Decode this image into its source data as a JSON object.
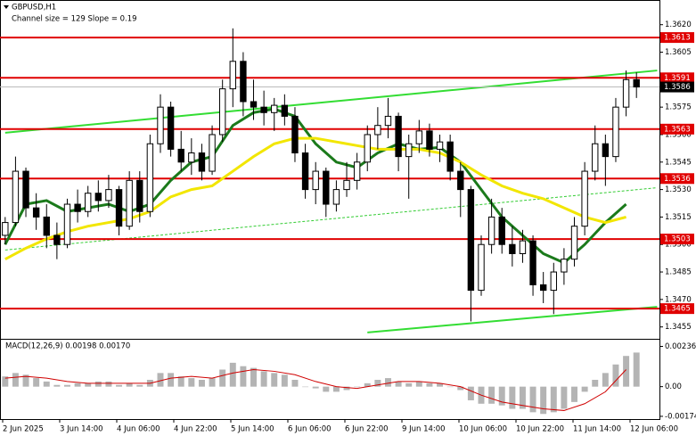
{
  "chart_data": {
    "type": "candlestick",
    "title": "GBPUSD,H1",
    "subtitle": "Channel size = 129 Slope = 0.19",
    "x_labels": [
      "2 Jun 2025",
      "3 Jun 14:00",
      "4 Jun 06:00",
      "4 Jun 22:00",
      "5 Jun 14:00",
      "6 Jun 06:00",
      "6 Jun 22:00",
      "9 Jun 14:00",
      "10 Jun 06:00",
      "10 Jun 22:00",
      "11 Jun 14:00",
      "12 Jun 06:00"
    ],
    "candles": [
      [
        1.3505,
        1.3515,
        1.35,
        1.3512
      ],
      [
        1.3512,
        1.3548,
        1.351,
        1.354
      ],
      [
        1.354,
        1.3542,
        1.3515,
        1.352
      ],
      [
        1.352,
        1.3528,
        1.3508,
        1.3515
      ],
      [
        1.3515,
        1.3522,
        1.3498,
        1.3505
      ],
      [
        1.3505,
        1.3512,
        1.3492,
        1.35
      ],
      [
        1.35,
        1.3525,
        1.3498,
        1.3522
      ],
      [
        1.3522,
        1.353,
        1.3512,
        1.3518
      ],
      [
        1.3518,
        1.3532,
        1.3515,
        1.3528
      ],
      [
        1.3528,
        1.3535,
        1.3518,
        1.3524
      ],
      [
        1.3524,
        1.3538,
        1.352,
        1.353
      ],
      [
        1.353,
        1.3532,
        1.3505,
        1.351
      ],
      [
        1.351,
        1.354,
        1.3508,
        1.3535
      ],
      [
        1.3535,
        1.354,
        1.3512,
        1.3518
      ],
      [
        1.3518,
        1.356,
        1.3515,
        1.3555
      ],
      [
        1.3555,
        1.3582,
        1.355,
        1.3575
      ],
      [
        1.3575,
        1.3578,
        1.3548,
        1.3552
      ],
      [
        1.3552,
        1.3562,
        1.354,
        1.3545
      ],
      [
        1.3545,
        1.3558,
        1.3538,
        1.355
      ],
      [
        1.355,
        1.3555,
        1.3535,
        1.354
      ],
      [
        1.354,
        1.3565,
        1.3538,
        1.356
      ],
      [
        1.356,
        1.359,
        1.3556,
        1.3585
      ],
      [
        1.3585,
        1.3618,
        1.3575,
        1.36
      ],
      [
        1.36,
        1.3605,
        1.357,
        1.3578
      ],
      [
        1.3578,
        1.359,
        1.3568,
        1.3575
      ],
      [
        1.3575,
        1.3584,
        1.3565,
        1.3572
      ],
      [
        1.3572,
        1.358,
        1.3562,
        1.3576
      ],
      [
        1.3576,
        1.3582,
        1.3565,
        1.357
      ],
      [
        1.357,
        1.3575,
        1.3545,
        1.355
      ],
      [
        1.355,
        1.3555,
        1.3525,
        1.353
      ],
      [
        1.353,
        1.3545,
        1.3522,
        1.354
      ],
      [
        1.354,
        1.3542,
        1.3515,
        1.3522
      ],
      [
        1.3522,
        1.3535,
        1.3518,
        1.353
      ],
      [
        1.353,
        1.3545,
        1.3526,
        1.3535
      ],
      [
        1.3535,
        1.355,
        1.353,
        1.3545
      ],
      [
        1.3545,
        1.3565,
        1.354,
        1.356
      ],
      [
        1.356,
        1.3575,
        1.3552,
        1.3565
      ],
      [
        1.3565,
        1.358,
        1.3558,
        1.357
      ],
      [
        1.357,
        1.3572,
        1.354,
        1.3548
      ],
      [
        1.3548,
        1.356,
        1.3525,
        1.3555
      ],
      [
        1.3555,
        1.3568,
        1.355,
        1.3562
      ],
      [
        1.3562,
        1.3566,
        1.3548,
        1.3552
      ],
      [
        1.3552,
        1.356,
        1.3545,
        1.3556
      ],
      [
        1.3556,
        1.356,
        1.3535,
        1.354
      ],
      [
        1.354,
        1.3545,
        1.3515,
        1.353
      ],
      [
        1.353,
        1.3532,
        1.3458,
        1.3475
      ],
      [
        1.3475,
        1.3505,
        1.3472,
        1.35
      ],
      [
        1.35,
        1.3525,
        1.3495,
        1.3515
      ],
      [
        1.3515,
        1.352,
        1.3495,
        1.35
      ],
      [
        1.35,
        1.351,
        1.3488,
        1.3495
      ],
      [
        1.3495,
        1.3508,
        1.349,
        1.3502
      ],
      [
        1.3502,
        1.3505,
        1.3472,
        1.3478
      ],
      [
        1.3478,
        1.3485,
        1.3468,
        1.3475
      ],
      [
        1.3475,
        1.349,
        1.3462,
        1.3485
      ],
      [
        1.3485,
        1.3498,
        1.3478,
        1.3492
      ],
      [
        1.3492,
        1.3515,
        1.3488,
        1.351
      ],
      [
        1.351,
        1.3545,
        1.3505,
        1.354
      ],
      [
        1.354,
        1.3565,
        1.3535,
        1.3555
      ],
      [
        1.3555,
        1.356,
        1.3532,
        1.3548
      ],
      [
        1.3548,
        1.358,
        1.3545,
        1.3575
      ],
      [
        1.3575,
        1.3595,
        1.357,
        1.359
      ],
      [
        1.359,
        1.3594,
        1.358,
        1.3586
      ]
    ],
    "moving_averages": [
      {
        "color": "#1b7a1b",
        "x": [
          0,
          2,
          4,
          6,
          8,
          10,
          12,
          14,
          16,
          18,
          20,
          22,
          24,
          26,
          28,
          30,
          32,
          34,
          36,
          38,
          40,
          42,
          44,
          46,
          48,
          50,
          52,
          54,
          56,
          58,
          60
        ],
        "values": [
          1.35,
          1.3522,
          1.3524,
          1.3518,
          1.352,
          1.3522,
          1.3518,
          1.3522,
          1.3535,
          1.3545,
          1.3548,
          1.3565,
          1.3572,
          1.3574,
          1.357,
          1.3555,
          1.3545,
          1.3542,
          1.355,
          1.3555,
          1.3552,
          1.3553,
          1.3545,
          1.353,
          1.3515,
          1.3505,
          1.3495,
          1.349,
          1.35,
          1.3512,
          1.3522
        ]
      },
      {
        "color": "#f2e600",
        "x": [
          0,
          2,
          4,
          6,
          8,
          10,
          12,
          14,
          16,
          18,
          20,
          22,
          24,
          26,
          28,
          30,
          32,
          34,
          36,
          38,
          40,
          42,
          44,
          46,
          48,
          50,
          52,
          54,
          56,
          58,
          60
        ],
        "values": [
          1.3492,
          1.3498,
          1.3503,
          1.3507,
          1.351,
          1.3512,
          1.3514,
          1.3518,
          1.3526,
          1.353,
          1.3532,
          1.354,
          1.3548,
          1.3555,
          1.3558,
          1.3558,
          1.3556,
          1.3554,
          1.3552,
          1.3552,
          1.3552,
          1.355,
          1.3545,
          1.3538,
          1.3532,
          1.3528,
          1.3525,
          1.352,
          1.3515,
          1.3512,
          1.3515
        ]
      }
    ],
    "trendlines": [
      {
        "color": "#33dd33",
        "x": [
          0,
          63
        ],
        "values": [
          1.3561,
          1.3595
        ]
      },
      {
        "color": "#33dd33",
        "x": [
          35,
          63
        ],
        "values": [
          1.3452,
          1.3466
        ]
      },
      {
        "color": "#33cc33",
        "dashed": true,
        "x": [
          0,
          63
        ],
        "values": [
          1.3497,
          1.3531
        ]
      }
    ],
    "levels": [
      {
        "value": 1.3613,
        "color": "#e00000"
      },
      {
        "value": 1.3591,
        "color": "#e00000"
      },
      {
        "value": 1.3563,
        "color": "#e00000"
      },
      {
        "value": 1.3536,
        "color": "#e00000"
      },
      {
        "value": 1.3503,
        "color": "#e00000"
      },
      {
        "value": 1.3465,
        "color": "#e00000"
      }
    ],
    "price": 1.3586,
    "ylim": [
      1.3449,
      1.3633
    ],
    "yticks": [
      {
        "value": 1.362,
        "label": "1.3620"
      },
      1.3605,
      {
        "value": 1.359,
        "label": "1.3590"
      },
      1.3575,
      {
        "value": 1.356,
        "label": "1.3560"
      },
      1.3545,
      {
        "value": 1.353,
        "label": "1.3530"
      },
      1.3515,
      {
        "value": 1.35,
        "label": "1.3500"
      },
      1.3485,
      {
        "value": 1.347,
        "label": "1.3470"
      },
      1.3455
    ],
    "macd": {
      "title": "MACD(12,26,9) 0.00198 0.00170",
      "histogram": [
        0.0006,
        0.0008,
        0.0007,
        0.0005,
        0.0003,
        0.0001,
        0.0001,
        0.0002,
        0.0002,
        0.0003,
        0.0003,
        0.0001,
        0.0002,
        0.0001,
        0.0004,
        0.0008,
        0.0008,
        0.0006,
        0.0005,
        0.0004,
        0.0005,
        0.001,
        0.0014,
        0.0012,
        0.0011,
        0.0009,
        0.0008,
        0.0007,
        0.0004,
        0.0,
        -0.0001,
        -0.0003,
        -0.0003,
        -0.0002,
        0.0,
        0.0002,
        0.0004,
        0.0005,
        0.0003,
        0.0002,
        0.0003,
        0.0002,
        0.0002,
        0.0,
        -0.0002,
        -0.0008,
        -0.001,
        -0.001,
        -0.0011,
        -0.0013,
        -0.0013,
        -0.0015,
        -0.0016,
        -0.0015,
        -0.0013,
        -0.0009,
        -0.0003,
        0.0004,
        0.0008,
        0.0013,
        0.0018,
        0.002
      ],
      "histogram_color": "#b4b4b4",
      "signal": {
        "color": "#d00000",
        "x": [
          0,
          2,
          4,
          6,
          8,
          10,
          12,
          14,
          16,
          18,
          20,
          22,
          24,
          26,
          28,
          30,
          32,
          34,
          36,
          38,
          40,
          42,
          44,
          46,
          48,
          50,
          52,
          54,
          56,
          58,
          60
        ],
        "values": [
          0.0005,
          0.0006,
          0.0005,
          0.0003,
          0.0002,
          0.0002,
          0.0002,
          0.0002,
          0.0005,
          0.0006,
          0.0005,
          0.0008,
          0.001,
          0.0009,
          0.0007,
          0.0003,
          0.0,
          -0.0001,
          0.0001,
          0.0003,
          0.0003,
          0.0002,
          0.0,
          -0.0005,
          -0.0009,
          -0.0011,
          -0.0013,
          -0.0014,
          -0.001,
          -0.0003,
          0.001
        ]
      },
      "ylim": [
        -0.0019,
        0.0027
      ],
      "yticks": [
        0.00236,
        {
          "value": 0,
          "label": "0.00"
        },
        -0.00174
      ]
    }
  }
}
